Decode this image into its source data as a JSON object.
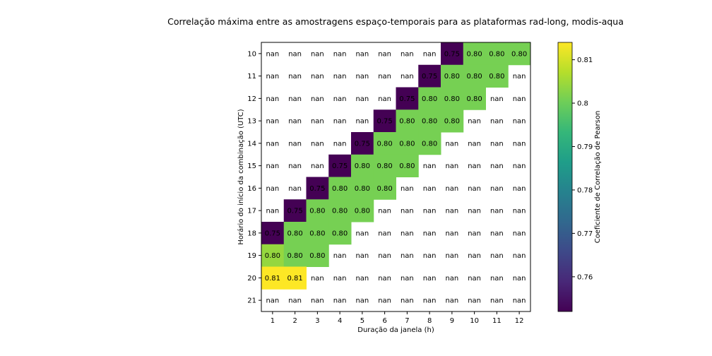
{
  "chart_data": {
    "type": "heatmap",
    "title": "Correlação máxima entre as amostragens espaço-temporais para as plataformas rad-long, modis-aqua",
    "xlabel": "Duração da janela (h)",
    "ylabel": "Horário do início da combinação (UTC)",
    "x_ticks": [
      "1",
      "2",
      "3",
      "4",
      "5",
      "6",
      "7",
      "8",
      "9",
      "10",
      "11",
      "12"
    ],
    "y_ticks": [
      "10",
      "11",
      "12",
      "13",
      "14",
      "15",
      "16",
      "17",
      "18",
      "19",
      "20",
      "21"
    ],
    "nan_label": "nan",
    "values": [
      [
        null,
        null,
        null,
        null,
        null,
        null,
        null,
        null,
        0.752,
        0.801,
        0.801,
        0.801
      ],
      [
        null,
        null,
        null,
        null,
        null,
        null,
        null,
        0.752,
        0.801,
        0.801,
        0.801,
        null
      ],
      [
        null,
        null,
        null,
        null,
        null,
        null,
        0.752,
        0.801,
        0.801,
        0.801,
        null,
        null
      ],
      [
        null,
        null,
        null,
        null,
        null,
        0.752,
        0.801,
        0.801,
        0.801,
        null,
        null,
        null
      ],
      [
        null,
        null,
        null,
        null,
        0.752,
        0.801,
        0.801,
        0.801,
        null,
        null,
        null,
        null
      ],
      [
        null,
        null,
        null,
        0.752,
        0.801,
        0.801,
        0.801,
        null,
        null,
        null,
        null,
        null
      ],
      [
        null,
        null,
        0.752,
        0.801,
        0.801,
        0.801,
        null,
        null,
        null,
        null,
        null,
        null
      ],
      [
        null,
        0.752,
        0.801,
        0.801,
        0.801,
        null,
        null,
        null,
        null,
        null,
        null,
        null
      ],
      [
        0.752,
        0.801,
        0.801,
        0.801,
        null,
        null,
        null,
        null,
        null,
        null,
        null,
        null
      ],
      [
        0.804,
        0.801,
        0.801,
        null,
        null,
        null,
        null,
        null,
        null,
        null,
        null,
        null
      ],
      [
        0.814,
        0.814,
        null,
        null,
        null,
        null,
        null,
        null,
        null,
        null,
        null,
        null
      ],
      [
        null,
        null,
        null,
        null,
        null,
        null,
        null,
        null,
        null,
        null,
        null,
        null
      ]
    ],
    "value_labels": [
      [
        "nan",
        "nan",
        "nan",
        "nan",
        "nan",
        "nan",
        "nan",
        "nan",
        "0.75",
        "0.80",
        "0.80",
        "0.80"
      ],
      [
        "nan",
        "nan",
        "nan",
        "nan",
        "nan",
        "nan",
        "nan",
        "0.75",
        "0.80",
        "0.80",
        "0.80",
        "nan"
      ],
      [
        "nan",
        "nan",
        "nan",
        "nan",
        "nan",
        "nan",
        "0.75",
        "0.80",
        "0.80",
        "0.80",
        "nan",
        "nan"
      ],
      [
        "nan",
        "nan",
        "nan",
        "nan",
        "nan",
        "0.75",
        "0.80",
        "0.80",
        "0.80",
        "nan",
        "nan",
        "nan"
      ],
      [
        "nan",
        "nan",
        "nan",
        "nan",
        "0.75",
        "0.80",
        "0.80",
        "0.80",
        "nan",
        "nan",
        "nan",
        "nan"
      ],
      [
        "nan",
        "nan",
        "nan",
        "0.75",
        "0.80",
        "0.80",
        "0.80",
        "nan",
        "nan",
        "nan",
        "nan",
        "nan"
      ],
      [
        "nan",
        "nan",
        "0.75",
        "0.80",
        "0.80",
        "0.80",
        "nan",
        "nan",
        "nan",
        "nan",
        "nan",
        "nan"
      ],
      [
        "nan",
        "0.75",
        "0.80",
        "0.80",
        "0.80",
        "nan",
        "nan",
        "nan",
        "nan",
        "nan",
        "nan",
        "nan"
      ],
      [
        "0.75",
        "0.80",
        "0.80",
        "0.80",
        "nan",
        "nan",
        "nan",
        "nan",
        "nan",
        "nan",
        "nan",
        "nan"
      ],
      [
        "0.80",
        "0.80",
        "0.80",
        "nan",
        "nan",
        "nan",
        "nan",
        "nan",
        "nan",
        "nan",
        "nan",
        "nan"
      ],
      [
        "0.81",
        "0.81",
        "nan",
        "nan",
        "nan",
        "nan",
        "nan",
        "nan",
        "nan",
        "nan",
        "nan",
        "nan"
      ],
      [
        "nan",
        "nan",
        "nan",
        "nan",
        "nan",
        "nan",
        "nan",
        "nan",
        "nan",
        "nan",
        "nan",
        "nan"
      ]
    ],
    "colorbar": {
      "label": "Coeficiente de Correlação de Pearson",
      "vmin": 0.752,
      "vmax": 0.814,
      "ticks": [
        0.76,
        0.77,
        0.78,
        0.79,
        0.8,
        0.81
      ],
      "tick_labels": [
        "0.76",
        "0.77",
        "0.78",
        "0.79",
        "0.8",
        "0.81"
      ],
      "colormap": "viridis"
    },
    "colors": {
      "viridis": [
        "#440154",
        "#482878",
        "#3e4989",
        "#31688e",
        "#26828e",
        "#1f9e89",
        "#35b779",
        "#6ece58",
        "#b5de2b",
        "#fde725"
      ],
      "background": "#ffffff",
      "text_dark": "#000000"
    }
  }
}
